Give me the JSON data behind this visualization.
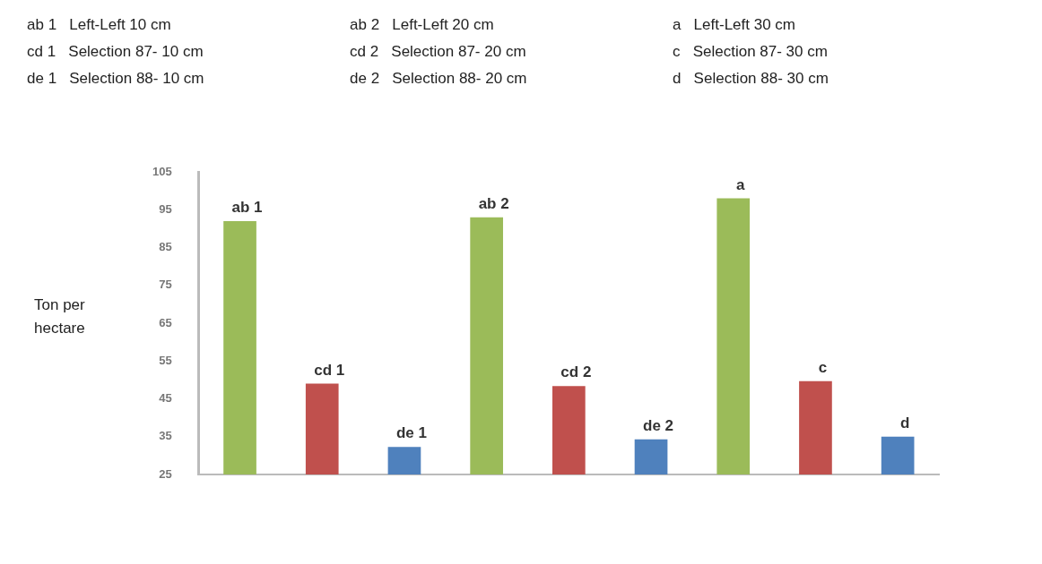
{
  "chart_data": {
    "type": "bar",
    "ylabel": "Ton per hectare",
    "categories": [
      null,
      null,
      null,
      null,
      null,
      null,
      null,
      null,
      null
    ],
    "values": [
      92,
      49,
      32.3,
      93,
      48.4,
      34.3,
      98,
      49.7,
      35
    ],
    "colors": [
      "#9bbb59",
      "#c0504d",
      "#4f81bd",
      "#9bbb59",
      "#c0504d",
      "#4f81bd",
      "#9bbb59",
      "#c0504d",
      "#4f81bd"
    ],
    "value_labels": [
      "ab 1",
      "cd 1",
      "de 1",
      "ab 2",
      "cd 2",
      "de 2",
      "a",
      "c",
      "d"
    ],
    "ylim": [
      25,
      105
    ],
    "yticks": [
      25,
      35,
      45,
      55,
      65,
      75,
      85,
      95,
      105
    ],
    "grid": false,
    "legend": false,
    "annotations": [
      "ab 1   Left-Left 10 cm",
      "ab 2   Left-Left 20 cm",
      "a   Left-Left 30 cm",
      "cd 1   Selection 87- 10 cm",
      "cd 2   Selection 87- 20 cm",
      "c   Selection 87- 30 cm",
      "de 1   Selection 88- 10 cm",
      "de 2   Selection 88- 20 cm",
      "d   Selection 88- 30 cm"
    ]
  }
}
